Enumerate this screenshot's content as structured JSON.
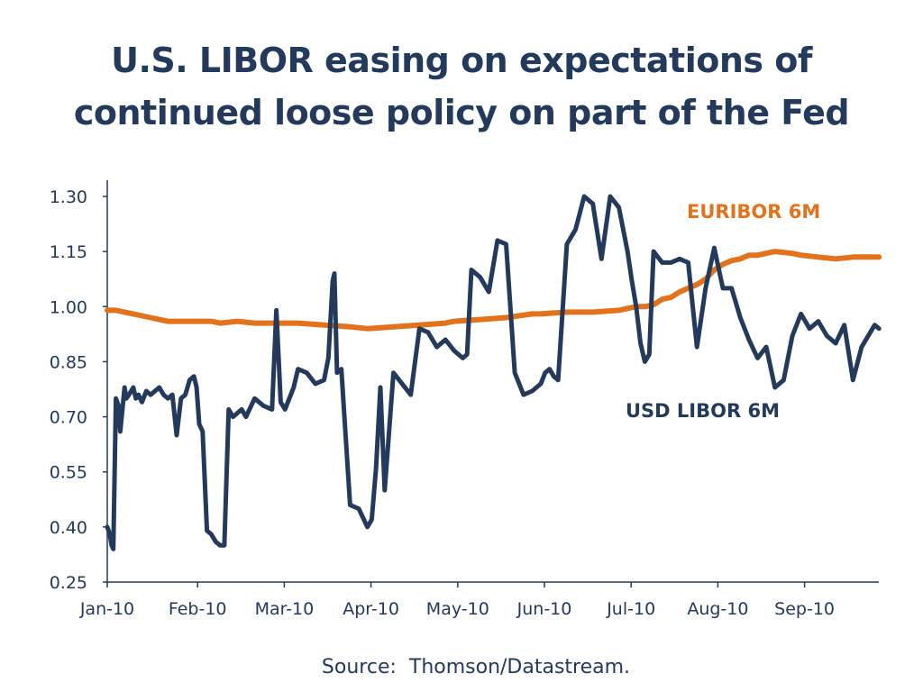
{
  "title": {
    "line1": "U.S. LIBOR easing on expectations of",
    "line2": "continued loose policy on part of the Fed"
  },
  "source": "Source:  Thomson/Datastream.",
  "colors": {
    "usd": "#233a5c",
    "euribor": "#e2731c",
    "axis": "#233a5c",
    "text": "#233a5c"
  },
  "chart_data": {
    "type": "line",
    "xlabel": "",
    "ylabel": "",
    "ylim": [
      0.25,
      1.32
    ],
    "grid": false,
    "yticks": [
      "0.25",
      "0.40",
      "0.55",
      "0.70",
      "0.85",
      "1.00",
      "1.15",
      "1.30"
    ],
    "x_tick_labels": [
      "Jan-10",
      "Feb-10",
      "Mar-10",
      "Apr-10",
      "May-10",
      "Jun-10",
      "Jul-10",
      "Aug-10",
      "Sep-10"
    ],
    "series": [
      {
        "name": "EURIBOR 6M",
        "x": [
          0,
          0.1,
          0.2,
          0.3,
          0.4,
          0.5,
          0.6,
          0.7,
          0.8,
          0.9,
          1.0,
          1.1,
          1.2,
          1.3,
          1.5,
          1.7,
          1.9,
          2.0,
          2.2,
          2.5,
          2.8,
          3.0,
          3.3,
          3.6,
          3.9,
          4.0,
          4.3,
          4.6,
          4.9,
          5.0,
          5.3,
          5.6,
          5.9,
          6.0,
          6.1,
          6.2,
          6.3,
          6.4,
          6.5,
          6.6,
          6.7,
          6.8,
          6.9,
          7.0,
          7.1,
          7.2,
          7.3,
          7.4,
          7.5,
          7.7,
          7.9,
          8.0,
          8.2,
          8.4,
          8.6,
          8.9
        ],
        "values": [
          0.99,
          0.99,
          0.985,
          0.98,
          0.975,
          0.97,
          0.965,
          0.96,
          0.96,
          0.96,
          0.96,
          0.96,
          0.96,
          0.955,
          0.96,
          0.955,
          0.955,
          0.955,
          0.955,
          0.95,
          0.945,
          0.94,
          0.945,
          0.95,
          0.955,
          0.96,
          0.965,
          0.97,
          0.98,
          0.98,
          0.985,
          0.985,
          0.99,
          0.995,
          1.0,
          1.0,
          1.005,
          1.02,
          1.025,
          1.04,
          1.05,
          1.06,
          1.075,
          1.1,
          1.115,
          1.125,
          1.13,
          1.14,
          1.14,
          1.15,
          1.145,
          1.14,
          1.135,
          1.13,
          1.135,
          1.135
        ]
      },
      {
        "name": "USD LIBOR 6M",
        "x": [
          0,
          0.03,
          0.05,
          0.07,
          0.1,
          0.13,
          0.15,
          0.2,
          0.22,
          0.25,
          0.3,
          0.33,
          0.36,
          0.4,
          0.45,
          0.5,
          0.55,
          0.6,
          0.65,
          0.7,
          0.75,
          0.8,
          0.85,
          0.9,
          0.95,
          1.0,
          1.03,
          1.06,
          1.1,
          1.15,
          1.2,
          1.25,
          1.3,
          1.35,
          1.4,
          1.45,
          1.5,
          1.55,
          1.6,
          1.7,
          1.8,
          1.9,
          1.95,
          2.0,
          2.05,
          2.1,
          2.15,
          2.2,
          2.3,
          2.4,
          2.5,
          2.55,
          2.6,
          2.62,
          2.65,
          2.7,
          2.8,
          2.9,
          3.0,
          3.05,
          3.1,
          3.15,
          3.2,
          3.3,
          3.4,
          3.5,
          3.6,
          3.7,
          3.8,
          3.9,
          4.0,
          4.1,
          4.15,
          4.2,
          4.3,
          4.4,
          4.5,
          4.6,
          4.7,
          4.8,
          4.9,
          5.0,
          5.05,
          5.1,
          5.15,
          5.2,
          5.3,
          5.4,
          5.5,
          5.6,
          5.7,
          5.8,
          5.9,
          6.0,
          6.05,
          6.1,
          6.15,
          6.2,
          6.25,
          6.3,
          6.4,
          6.5,
          6.6,
          6.7,
          6.8,
          6.9,
          7.0,
          7.1,
          7.2,
          7.3,
          7.4,
          7.5,
          7.6,
          7.7,
          7.8,
          7.9,
          8.0,
          8.1,
          8.2,
          8.3,
          8.4,
          8.5,
          8.6,
          8.7,
          8.8,
          8.85,
          8.9
        ],
        "values": [
          0.4,
          0.38,
          0.35,
          0.34,
          0.75,
          0.73,
          0.66,
          0.78,
          0.75,
          0.76,
          0.78,
          0.75,
          0.76,
          0.74,
          0.77,
          0.76,
          0.77,
          0.78,
          0.76,
          0.75,
          0.76,
          0.65,
          0.75,
          0.76,
          0.8,
          0.81,
          0.78,
          0.68,
          0.66,
          0.39,
          0.38,
          0.36,
          0.35,
          0.35,
          0.72,
          0.7,
          0.71,
          0.72,
          0.7,
          0.75,
          0.73,
          0.72,
          0.99,
          0.74,
          0.72,
          0.75,
          0.78,
          0.83,
          0.82,
          0.79,
          0.8,
          0.86,
          1.07,
          1.09,
          0.82,
          0.83,
          0.46,
          0.45,
          0.4,
          0.42,
          0.56,
          0.78,
          0.5,
          0.82,
          0.79,
          0.76,
          0.94,
          0.93,
          0.89,
          0.91,
          0.88,
          0.86,
          0.87,
          1.1,
          1.08,
          1.04,
          1.18,
          1.17,
          0.82,
          0.76,
          0.77,
          0.79,
          0.82,
          0.83,
          0.81,
          0.8,
          1.17,
          1.21,
          1.3,
          1.28,
          1.13,
          1.3,
          1.27,
          1.15,
          1.07,
          1.0,
          0.9,
          0.85,
          0.87,
          1.15,
          1.12,
          1.12,
          1.13,
          1.12,
          0.89,
          1.05,
          1.16,
          1.05,
          1.05,
          0.97,
          0.91,
          0.86,
          0.89,
          0.78,
          0.8,
          0.92,
          0.98,
          0.94,
          0.96,
          0.92,
          0.9,
          0.95,
          0.8,
          0.89,
          0.93,
          0.95,
          0.94
        ]
      }
    ]
  }
}
